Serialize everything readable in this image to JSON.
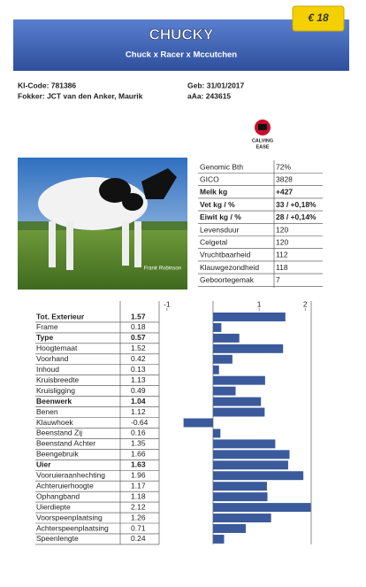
{
  "header": {
    "price": "€ 18",
    "title": "CHUCKY",
    "pedigree": "Chuck x Racer x Mccutchen"
  },
  "info": {
    "ki_code": "KI-Code: 781386",
    "breeder": "Fokker: JCT van den Anker, Maurik",
    "birth": "Geb: 31/01/2017",
    "aaa": "aAa: 243615"
  },
  "logo": {
    "line1": "CALVING",
    "line2": "EASE"
  },
  "photo": {
    "credit": "Frank Robinson"
  },
  "stats": {
    "rows": [
      {
        "label": "Genomic Bth",
        "value": "72%",
        "bold": false
      },
      {
        "label": "GICO",
        "value": "3828",
        "bold": false
      },
      {
        "label": "Melk kg",
        "value": "+427",
        "bold": true
      },
      {
        "label": "Vet kg / %",
        "value": "33 / +0,18%",
        "bold": true
      },
      {
        "label": "Eiwit kg / %",
        "value": "28 / +0,14%",
        "bold": true
      },
      {
        "label": "Levensduur",
        "value": "120",
        "bold": false
      },
      {
        "label": "Celgetal",
        "value": "120",
        "bold": false
      },
      {
        "label": "Vruchtbaarheid",
        "value": "112",
        "bold": false
      },
      {
        "label": "Klauwgezondheid",
        "value": "118",
        "bold": false
      },
      {
        "label": "Geboortegemak",
        "value": "7",
        "bold": false
      }
    ]
  },
  "traits": {
    "xlim": [
      -1.17,
      2.13
    ],
    "xticks": [
      -1,
      1,
      2
    ],
    "color": "#3a5a9c",
    "rows": [
      {
        "name": "Tot. Exterieur",
        "value": 1.57,
        "bold": true
      },
      {
        "name": "Frame",
        "value": 0.18,
        "bold": false
      },
      {
        "name": "Type",
        "value": 0.57,
        "bold": true
      },
      {
        "name": "Hoogtemaat",
        "value": 1.52,
        "bold": false
      },
      {
        "name": "Voorhand",
        "value": 0.42,
        "bold": false
      },
      {
        "name": "Inhoud",
        "value": 0.13,
        "bold": false
      },
      {
        "name": "Kruisbreedte",
        "value": 1.13,
        "bold": false
      },
      {
        "name": "Kruisligging",
        "value": 0.49,
        "bold": false
      },
      {
        "name": "Beenwerk",
        "value": 1.04,
        "bold": true
      },
      {
        "name": "Benen",
        "value": 1.12,
        "bold": false
      },
      {
        "name": "Klauwhoek",
        "value": -0.64,
        "bold": false
      },
      {
        "name": "Beenstand Zij",
        "value": 0.16,
        "bold": false
      },
      {
        "name": "Beenstand Achter",
        "value": 1.35,
        "bold": false
      },
      {
        "name": "Beengebruik",
        "value": 1.66,
        "bold": false
      },
      {
        "name": "Uier",
        "value": 1.63,
        "bold": true
      },
      {
        "name": "Vooruieraanhechting",
        "value": 1.96,
        "bold": false
      },
      {
        "name": "Achteruierhoogte",
        "value": 1.17,
        "bold": false
      },
      {
        "name": "Ophangband",
        "value": 1.18,
        "bold": false
      },
      {
        "name": "Uierdiepte",
        "value": 2.12,
        "bold": false
      },
      {
        "name": "Voorspeenplaatsing",
        "value": 1.26,
        "bold": false
      },
      {
        "name": "Achterspeenplaatsing",
        "value": 0.71,
        "bold": false
      },
      {
        "name": "Speenlengte",
        "value": 0.24,
        "bold": false
      }
    ]
  }
}
